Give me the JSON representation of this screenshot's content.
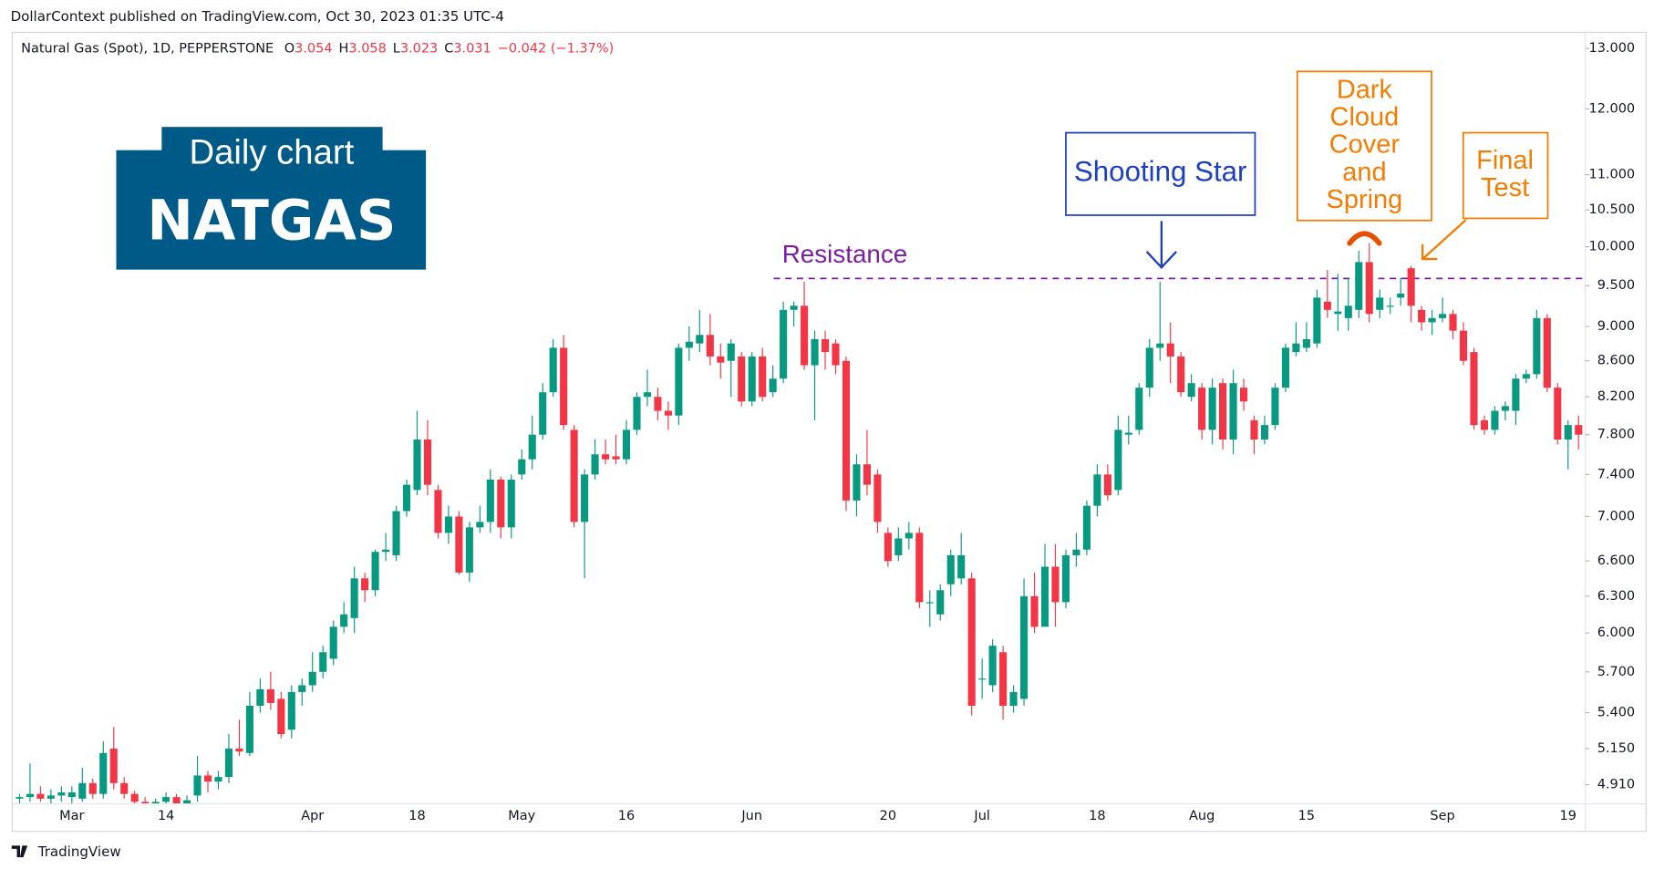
{
  "header": {
    "text": "DollarContext published on TradingView.com, Oct 30, 2023 01:35 UTC-4"
  },
  "legend": {
    "symbol": "Natural Gas (Spot), 1D, PEPPERSTONE",
    "ohlc": [
      {
        "prefix": "O",
        "value": "3.054"
      },
      {
        "prefix": "H",
        "value": "3.058"
      },
      {
        "prefix": "L",
        "value": "3.023"
      },
      {
        "prefix": "C",
        "value": "3.031"
      }
    ],
    "change": "−0.042 (−1.37%)"
  },
  "badge": {
    "subtitle": "Daily chart",
    "title": "NATGAS"
  },
  "footer": {
    "brand": "TradingView"
  },
  "chart_data": {
    "type": "candlestick",
    "log_scale": true,
    "grid": false,
    "up_color": "#089981",
    "down_color": "#f23645",
    "ylim": [
      4.79,
      13.27
    ],
    "yticks": [
      {
        "value": 4.91,
        "label": "4.910"
      },
      {
        "value": 5.15,
        "label": "5.150"
      },
      {
        "value": 5.4,
        "label": "5.400"
      },
      {
        "value": 5.7,
        "label": "5.700"
      },
      {
        "value": 6,
        "label": "6.000"
      },
      {
        "value": 6.3,
        "label": "6.300"
      },
      {
        "value": 6.6,
        "label": "6.600"
      },
      {
        "value": 7,
        "label": "7.000"
      },
      {
        "value": 7.4,
        "label": "7.400"
      },
      {
        "value": 7.8,
        "label": "7.800"
      },
      {
        "value": 8.2,
        "label": "8.200"
      },
      {
        "value": 8.6,
        "label": "8.600"
      },
      {
        "value": 9,
        "label": "9.000"
      },
      {
        "value": 9.5,
        "label": "9.500"
      },
      {
        "value": 10,
        "label": "10.000"
      },
      {
        "value": 10.5,
        "label": "10.500"
      },
      {
        "value": 11,
        "label": "11.000"
      },
      {
        "value": 12,
        "label": "12.000"
      },
      {
        "value": 13,
        "label": "13.000"
      }
    ],
    "categories": [
      null,
      null,
      null,
      null,
      null,
      "Mar",
      null,
      null,
      null,
      null,
      null,
      null,
      null,
      null,
      "14",
      null,
      null,
      null,
      null,
      null,
      null,
      null,
      null,
      null,
      null,
      null,
      null,
      null,
      "Apr",
      null,
      null,
      null,
      null,
      null,
      null,
      null,
      null,
      null,
      "18",
      null,
      null,
      null,
      null,
      null,
      null,
      null,
      null,
      null,
      "May",
      null,
      null,
      null,
      null,
      null,
      null,
      null,
      null,
      null,
      "16",
      null,
      null,
      null,
      null,
      null,
      null,
      null,
      null,
      null,
      null,
      null,
      "Jun",
      null,
      null,
      null,
      null,
      null,
      null,
      null,
      null,
      null,
      null,
      null,
      null,
      "20",
      null,
      null,
      null,
      null,
      null,
      null,
      null,
      null,
      "Jul",
      null,
      null,
      null,
      null,
      null,
      null,
      null,
      null,
      null,
      null,
      "18",
      null,
      null,
      null,
      null,
      null,
      null,
      null,
      null,
      null,
      "Aug",
      null,
      null,
      null,
      null,
      null,
      null,
      null,
      null,
      null,
      "15",
      null,
      null,
      null,
      null,
      null,
      null,
      null,
      null,
      null,
      null,
      null,
      null,
      "Sep",
      null,
      null,
      null,
      null,
      null,
      null,
      null,
      null,
      null,
      null,
      null,
      "19",
      null
    ],
    "open": [
      4.82,
      4.83,
      4.85,
      4.82,
      4.84,
      4.83,
      4.82,
      4.92,
      4.85,
      5.15,
      4.92,
      4.85,
      4.8,
      4.78,
      4.8,
      4.83,
      4.79,
      4.84,
      4.97,
      4.93,
      4.96,
      5.15,
      5.12,
      5.45,
      5.57,
      5.5,
      5.28,
      5.55,
      5.6,
      5.7,
      5.8,
      6.05,
      6.12,
      6.45,
      6.35,
      6.68,
      6.65,
      7.05,
      7.25,
      7.75,
      7.25,
      6.85,
      7,
      6.5,
      6.9,
      6.95,
      7.35,
      6.9,
      7.4,
      7.55,
      7.8,
      8.25,
      8.75,
      7.85,
      6.95,
      7.4,
      7.6,
      7.58,
      7.55,
      7.85,
      8.2,
      8.2,
      8.05,
      8,
      8.75,
      8.8,
      8.9,
      8.65,
      8.6,
      8.65,
      8.15,
      8.65,
      8.25,
      8.4,
      9.2,
      9.25,
      8.55,
      8.85,
      8.8,
      8.6,
      7.15,
      7.5,
      7.4,
      6.85,
      6.65,
      6.8,
      6.85,
      6.25,
      6.15,
      6.4,
      6.45,
      6.45,
      5.65,
      5.6,
      5.85,
      5.45,
      5.5,
      6.3,
      6.05,
      6.55,
      6.25,
      6.65,
      6.7,
      7.1,
      7.4,
      7.25,
      7.8,
      7.85,
      8.3,
      8.75,
      8.8,
      8.65,
      8.2,
      8.3,
      7.85,
      8.35,
      7.75,
      8.3,
      7.95,
      7.75,
      7.9,
      8.3,
      8.7,
      8.75,
      8.8,
      9.3,
      9.15,
      9.1,
      9.2,
      9.8,
      9.2,
      9.25,
      9.35,
      9.72,
      9.2,
      9.05,
      9.1,
      9.15,
      8.95,
      8.7,
      7.95,
      7.85,
      8.05,
      8.05,
      8.4,
      8.45,
      9.1,
      8.3,
      7.75,
      7.9
    ],
    "high": [
      4.85,
      5.05,
      4.9,
      4.88,
      4.9,
      4.9,
      5.02,
      4.95,
      5.2,
      5.3,
      4.96,
      4.87,
      4.83,
      4.82,
      4.86,
      4.85,
      4.84,
      5.1,
      5,
      5,
      5.25,
      5.35,
      5.55,
      5.65,
      5.7,
      5.55,
      5.6,
      5.65,
      5.85,
      5.9,
      6.1,
      6.25,
      6.55,
      6.5,
      6.7,
      6.85,
      7.1,
      7.35,
      8.05,
      7.95,
      7.3,
      7.1,
      7.05,
      6.95,
      7.1,
      7.45,
      7.38,
      7.4,
      7.65,
      8,
      8.35,
      8.85,
      8.9,
      7.9,
      7.45,
      7.75,
      7.75,
      7.8,
      7.95,
      8.25,
      8.5,
      8.3,
      8.15,
      8.8,
      9,
      9.2,
      9.15,
      8.8,
      8.85,
      8.7,
      8.7,
      8.75,
      8.55,
      9.3,
      9.3,
      9.55,
      8.95,
      8.95,
      8.85,
      8.65,
      7.6,
      7.85,
      7.45,
      6.9,
      6.9,
      6.95,
      6.9,
      6.35,
      6.4,
      6.7,
      6.85,
      6.5,
      5.8,
      5.95,
      5.9,
      5.6,
      6.45,
      6.5,
      6.75,
      6.75,
      6.7,
      6.85,
      7.15,
      7.5,
      7.5,
      8,
      8,
      8.35,
      8.85,
      9.55,
      9.05,
      8.7,
      8.45,
      8.35,
      8.4,
      8.4,
      8.5,
      8.4,
      8,
      8,
      8.35,
      8.8,
      9.05,
      9.05,
      9.45,
      9.7,
      9.65,
      9.6,
      9.95,
      10.05,
      9.45,
      9.35,
      9.6,
      9.75,
      9.25,
      9.2,
      9.35,
      9.2,
      9.05,
      8.75,
      8,
      8.1,
      8.15,
      8.45,
      8.5,
      9.2,
      9.15,
      8.35,
      7.95,
      8
    ],
    "low": [
      4.79,
      4.8,
      4.8,
      4.79,
      4.8,
      4.79,
      4.8,
      4.82,
      4.82,
      4.88,
      4.82,
      4.78,
      4.75,
      4.74,
      4.78,
      4.76,
      4.75,
      4.8,
      4.86,
      4.88,
      4.92,
      5.1,
      5.1,
      5.4,
      5.42,
      5.22,
      5.22,
      5.45,
      5.55,
      5.65,
      5.75,
      6,
      6,
      6.25,
      6.3,
      6.6,
      6.6,
      7,
      7.2,
      7.2,
      6.8,
      6.75,
      6.48,
      6.42,
      6.85,
      6.85,
      6.8,
      6.8,
      7.35,
      7.45,
      7.75,
      8.2,
      7.85,
      6.9,
      6.45,
      7.35,
      7.5,
      7.5,
      7.5,
      7.8,
      8.1,
      7.95,
      7.85,
      7.9,
      8.6,
      8.7,
      8.55,
      8.4,
      8.2,
      8.1,
      8.1,
      8.15,
      8.2,
      8.35,
      9,
      8.5,
      7.95,
      8.5,
      8.45,
      7.05,
      7,
      7.2,
      6.85,
      6.55,
      6.6,
      6.7,
      6.2,
      6.05,
      6.1,
      6.3,
      6.4,
      5.38,
      5.5,
      5.55,
      5.35,
      5.4,
      5.45,
      6,
      6.05,
      6.05,
      6.2,
      6.55,
      6.65,
      7,
      7.15,
      7.2,
      7.7,
      7.8,
      8.2,
      8.6,
      8.35,
      8.2,
      8.15,
      7.75,
      7.7,
      7.65,
      7.6,
      8.05,
      7.6,
      7.7,
      7.85,
      8.25,
      8.65,
      8.7,
      8.75,
      9.1,
      8.95,
      8.95,
      9.1,
      9.05,
      9.1,
      9.15,
      9.25,
      9.05,
      8.95,
      8.9,
      9.05,
      8.85,
      8.55,
      7.85,
      7.8,
      7.8,
      7.95,
      7.9,
      8.35,
      8.4,
      8.25,
      7.7,
      7.45,
      7.65
    ],
    "close": [
      4.83,
      4.85,
      4.82,
      4.84,
      4.86,
      4.86,
      4.92,
      4.85,
      5.12,
      4.92,
      4.85,
      4.8,
      4.78,
      4.8,
      4.83,
      4.79,
      4.81,
      4.97,
      4.93,
      4.96,
      5.15,
      5.13,
      5.45,
      5.57,
      5.47,
      5.25,
      5.55,
      5.6,
      5.7,
      5.85,
      6.05,
      6.15,
      6.45,
      6.35,
      6.68,
      6.7,
      7.05,
      7.3,
      7.75,
      7.3,
      6.85,
      7,
      6.5,
      6.9,
      6.95,
      7.35,
      6.9,
      7.35,
      7.55,
      7.8,
      8.25,
      8.75,
      7.9,
      6.95,
      7.4,
      7.6,
      7.55,
      7.55,
      7.85,
      8.2,
      8.25,
      8.05,
      8,
      8.75,
      8.82,
      8.9,
      8.65,
      8.58,
      8.8,
      8.15,
      8.65,
      8.2,
      8.4,
      9.2,
      9.25,
      8.55,
      8.85,
      8.7,
      8.55,
      7.15,
      7.5,
      7.3,
      6.95,
      6.6,
      6.8,
      6.85,
      6.25,
      6.25,
      6.35,
      6.65,
      6.65,
      5.45,
      5.65,
      5.9,
      5.45,
      5.55,
      6.3,
      6.05,
      6.55,
      6.25,
      6.65,
      6.7,
      7.1,
      7.4,
      7.2,
      7.85,
      7.82,
      8.3,
      8.75,
      8.8,
      8.65,
      8.25,
      8.35,
      7.85,
      8.3,
      7.75,
      8.35,
      8.15,
      7.75,
      7.9,
      8.3,
      8.75,
      8.8,
      8.85,
      9.35,
      9.2,
      9.18,
      9.25,
      9.8,
      9.15,
      9.35,
      9.25,
      9.4,
      9.25,
      9.05,
      9.1,
      9.15,
      8.95,
      8.6,
      7.9,
      7.85,
      8.05,
      8.1,
      8.4,
      8.45,
      9.1,
      8.3,
      7.75,
      7.9,
      7.8
    ],
    "resistance": {
      "label": "Resistance",
      "value": 9.59
    },
    "annotations": {
      "shooting_star": "Shooting Star",
      "dark_cloud": [
        "Dark",
        "Cloud",
        "Cover",
        "and",
        "Spring"
      ],
      "final_test": [
        "Final",
        "Test"
      ]
    }
  }
}
